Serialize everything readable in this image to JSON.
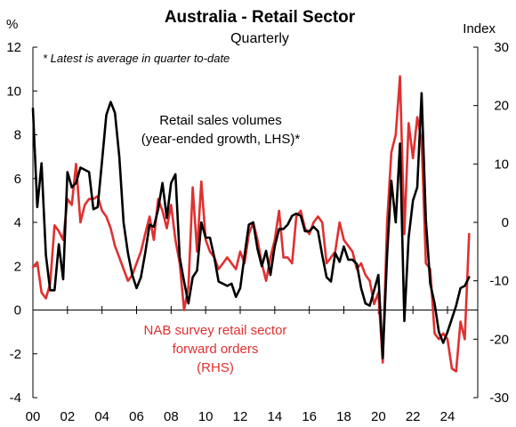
{
  "chart_data": {
    "type": "line",
    "title": "Australia - Retail Sector",
    "subtitle": "Quarterly",
    "note": "* Latest is average in quarter to-date",
    "left_axis": {
      "unit": "%",
      "ylim": [
        -4,
        12
      ],
      "ticks": [
        "12",
        "10",
        "8",
        "6",
        "4",
        "2",
        "0",
        "-2",
        "-4"
      ]
    },
    "right_axis": {
      "unit": "Index",
      "ylim": [
        -30,
        30
      ],
      "ticks": [
        "30",
        "20",
        "10",
        "0",
        "-10",
        "-20",
        "-30"
      ]
    },
    "x_ticks": [
      "00",
      "02",
      "04",
      "06",
      "08",
      "10",
      "12",
      "14",
      "16",
      "18",
      "20",
      "22",
      "24"
    ],
    "series": [
      {
        "name": "Retail sales volumes (year-ended growth, LHS)*",
        "label_lines": [
          "Retail sales volumes",
          "(year-ended growth, LHS)*"
        ],
        "axis": "left",
        "color": "#000000",
        "points": [
          [
            2000.0,
            9.2
          ],
          [
            2000.25,
            4.7
          ],
          [
            2000.5,
            6.7
          ],
          [
            2000.75,
            2.5
          ],
          [
            2001.0,
            0.9
          ],
          [
            2001.25,
            0.9
          ],
          [
            2001.5,
            3.0
          ],
          [
            2001.75,
            1.4
          ],
          [
            2002.0,
            6.3
          ],
          [
            2002.25,
            5.6
          ],
          [
            2002.5,
            5.8
          ],
          [
            2002.75,
            6.5
          ],
          [
            2003.0,
            6.4
          ],
          [
            2003.25,
            6.3
          ],
          [
            2003.5,
            4.6
          ],
          [
            2003.75,
            4.7
          ],
          [
            2004.0,
            6.8
          ],
          [
            2004.25,
            8.9
          ],
          [
            2004.5,
            9.5
          ],
          [
            2004.75,
            9.0
          ],
          [
            2005.0,
            7.0
          ],
          [
            2005.25,
            4.0
          ],
          [
            2005.5,
            2.6
          ],
          [
            2005.75,
            1.6
          ],
          [
            2006.0,
            1.0
          ],
          [
            2006.25,
            1.5
          ],
          [
            2006.5,
            2.6
          ],
          [
            2006.75,
            3.9
          ],
          [
            2007.0,
            3.8
          ],
          [
            2007.25,
            4.6
          ],
          [
            2007.5,
            5.8
          ],
          [
            2007.75,
            4.2
          ],
          [
            2008.0,
            5.8
          ],
          [
            2008.25,
            6.2
          ],
          [
            2008.5,
            2.4
          ],
          [
            2008.75,
            1.3
          ],
          [
            2009.0,
            0.3
          ],
          [
            2009.25,
            1.5
          ],
          [
            2009.5,
            1.8
          ],
          [
            2009.75,
            4.0
          ],
          [
            2010.0,
            3.3
          ],
          [
            2010.25,
            3.3
          ],
          [
            2010.5,
            2.4
          ],
          [
            2010.75,
            1.3
          ],
          [
            2011.0,
            1.2
          ],
          [
            2011.25,
            1.1
          ],
          [
            2011.5,
            1.2
          ],
          [
            2011.75,
            0.6
          ],
          [
            2012.0,
            1.0
          ],
          [
            2012.25,
            2.5
          ],
          [
            2012.5,
            3.9
          ],
          [
            2012.75,
            4.0
          ],
          [
            2013.0,
            2.8
          ],
          [
            2013.25,
            2.0
          ],
          [
            2013.5,
            2.7
          ],
          [
            2013.75,
            1.6
          ],
          [
            2014.0,
            2.9
          ],
          [
            2014.25,
            3.7
          ],
          [
            2014.5,
            3.7
          ],
          [
            2014.75,
            3.9
          ],
          [
            2015.0,
            4.3
          ],
          [
            2015.25,
            4.4
          ],
          [
            2015.5,
            4.3
          ],
          [
            2015.75,
            3.6
          ],
          [
            2016.0,
            3.6
          ],
          [
            2016.25,
            3.8
          ],
          [
            2016.5,
            3.6
          ],
          [
            2016.75,
            2.5
          ],
          [
            2017.0,
            1.5
          ],
          [
            2017.25,
            1.3
          ],
          [
            2017.5,
            2.6
          ],
          [
            2017.75,
            2.2
          ],
          [
            2018.0,
            2.9
          ],
          [
            2018.25,
            2.3
          ],
          [
            2018.5,
            2.3
          ],
          [
            2018.75,
            2.1
          ],
          [
            2019.0,
            1.0
          ],
          [
            2019.25,
            0.3
          ],
          [
            2019.5,
            0.2
          ],
          [
            2019.75,
            0.9
          ],
          [
            2020.0,
            1.6
          ],
          [
            2020.25,
            -2.2
          ],
          [
            2020.5,
            2.5
          ],
          [
            2020.75,
            5.9
          ],
          [
            2021.0,
            4.0
          ],
          [
            2021.25,
            7.6
          ],
          [
            2021.5,
            -0.5
          ],
          [
            2021.75,
            3.3
          ],
          [
            2022.0,
            5.0
          ],
          [
            2022.25,
            5.6
          ],
          [
            2022.5,
            9.9
          ],
          [
            2022.75,
            4.1
          ],
          [
            2023.0,
            1.2
          ],
          [
            2023.25,
            0.3
          ],
          [
            2023.5,
            -1.0
          ],
          [
            2023.75,
            -1.5
          ],
          [
            2024.0,
            -1.0
          ],
          [
            2024.25,
            -0.4
          ],
          [
            2024.5,
            0.2
          ],
          [
            2024.75,
            1.0
          ],
          [
            2025.0,
            1.1
          ],
          [
            2025.25,
            1.5
          ]
        ]
      },
      {
        "name": "NAB survey retail sector forward orders (RHS)",
        "label_lines": [
          "NAB survey retail sector",
          "forward orders",
          "(RHS)"
        ],
        "axis": "right",
        "color": "#e03030",
        "points": [
          [
            2000.0,
            -7.7
          ],
          [
            2000.25,
            -6.8
          ],
          [
            2000.5,
            -12.0
          ],
          [
            2000.75,
            -13.0
          ],
          [
            2001.0,
            -10.5
          ],
          [
            2001.25,
            -0.5
          ],
          [
            2001.5,
            -1.5
          ],
          [
            2001.75,
            -3.0
          ],
          [
            2002.0,
            4.0
          ],
          [
            2002.25,
            3.0
          ],
          [
            2002.5,
            10.0
          ],
          [
            2002.75,
            0.0
          ],
          [
            2003.0,
            3.0
          ],
          [
            2003.25,
            4.0
          ],
          [
            2003.5,
            4.0
          ],
          [
            2003.75,
            4.5
          ],
          [
            2004.0,
            2.0
          ],
          [
            2004.25,
            1.0
          ],
          [
            2004.5,
            -1.0
          ],
          [
            2004.75,
            -4.0
          ],
          [
            2005.0,
            -6.0
          ],
          [
            2005.25,
            -8.0
          ],
          [
            2005.5,
            -10.0
          ],
          [
            2005.75,
            -9.0
          ],
          [
            2006.0,
            -7.0
          ],
          [
            2006.25,
            -5.0
          ],
          [
            2006.5,
            -2.0
          ],
          [
            2006.75,
            1.0
          ],
          [
            2007.0,
            -3.0
          ],
          [
            2007.25,
            4.0
          ],
          [
            2007.5,
            2.0
          ],
          [
            2007.75,
            -1.0
          ],
          [
            2008.0,
            3.0
          ],
          [
            2008.25,
            -3.0
          ],
          [
            2008.5,
            -7.0
          ],
          [
            2008.75,
            -15.0
          ],
          [
            2009.0,
            -11.0
          ],
          [
            2009.25,
            6.0
          ],
          [
            2009.5,
            -5.0
          ],
          [
            2009.75,
            7.0
          ],
          [
            2010.0,
            -3.0
          ],
          [
            2010.25,
            -5.0
          ],
          [
            2010.5,
            -6.0
          ],
          [
            2010.75,
            -8.0
          ],
          [
            2011.0,
            -7.0
          ],
          [
            2011.25,
            -6.0
          ],
          [
            2011.5,
            -7.0
          ],
          [
            2011.75,
            -8.0
          ],
          [
            2012.0,
            -5.0
          ],
          [
            2012.25,
            -7.0
          ],
          [
            2012.5,
            -2.0
          ],
          [
            2012.75,
            0.0
          ],
          [
            2013.0,
            -3.0
          ],
          [
            2013.25,
            -7.0
          ],
          [
            2013.5,
            -10.0
          ],
          [
            2013.75,
            -6.0
          ],
          [
            2014.0,
            -3.0
          ],
          [
            2014.25,
            2.0
          ],
          [
            2014.5,
            -6.0
          ],
          [
            2014.75,
            -6.0
          ],
          [
            2015.0,
            -7.0
          ],
          [
            2015.25,
            1.0
          ],
          [
            2015.5,
            2.0
          ],
          [
            2015.75,
            -1.0
          ],
          [
            2016.0,
            -2.0
          ],
          [
            2016.25,
            0.0
          ],
          [
            2016.5,
            1.0
          ],
          [
            2016.75,
            0.0
          ],
          [
            2017.0,
            -7.0
          ],
          [
            2017.25,
            -6.0
          ],
          [
            2017.5,
            -5.0
          ],
          [
            2017.75,
            0.0
          ],
          [
            2018.0,
            -3.0
          ],
          [
            2018.25,
            -4.0
          ],
          [
            2018.5,
            -5.0
          ],
          [
            2018.75,
            -8.0
          ],
          [
            2019.0,
            -7.0
          ],
          [
            2019.25,
            -9.0
          ],
          [
            2019.5,
            -10.0
          ],
          [
            2019.75,
            -14.0
          ],
          [
            2020.0,
            -12.0
          ],
          [
            2020.25,
            -24.0
          ],
          [
            2020.5,
            0.0
          ],
          [
            2020.75,
            12.0
          ],
          [
            2021.0,
            15.0
          ],
          [
            2021.25,
            25.0
          ],
          [
            2021.5,
            -2.0
          ],
          [
            2021.75,
            17.0
          ],
          [
            2022.0,
            11.0
          ],
          [
            2022.25,
            18.0
          ],
          [
            2022.5,
            14.0
          ],
          [
            2022.75,
            -7.0
          ],
          [
            2023.0,
            -8.0
          ],
          [
            2023.25,
            -19.0
          ],
          [
            2023.5,
            -20.0
          ],
          [
            2023.75,
            -19.0
          ],
          [
            2024.0,
            -20.0
          ],
          [
            2024.25,
            -25.0
          ],
          [
            2024.5,
            -25.5
          ],
          [
            2024.75,
            -17.0
          ],
          [
            2025.0,
            -20.0
          ],
          [
            2025.25,
            -2.0
          ]
        ]
      }
    ]
  }
}
